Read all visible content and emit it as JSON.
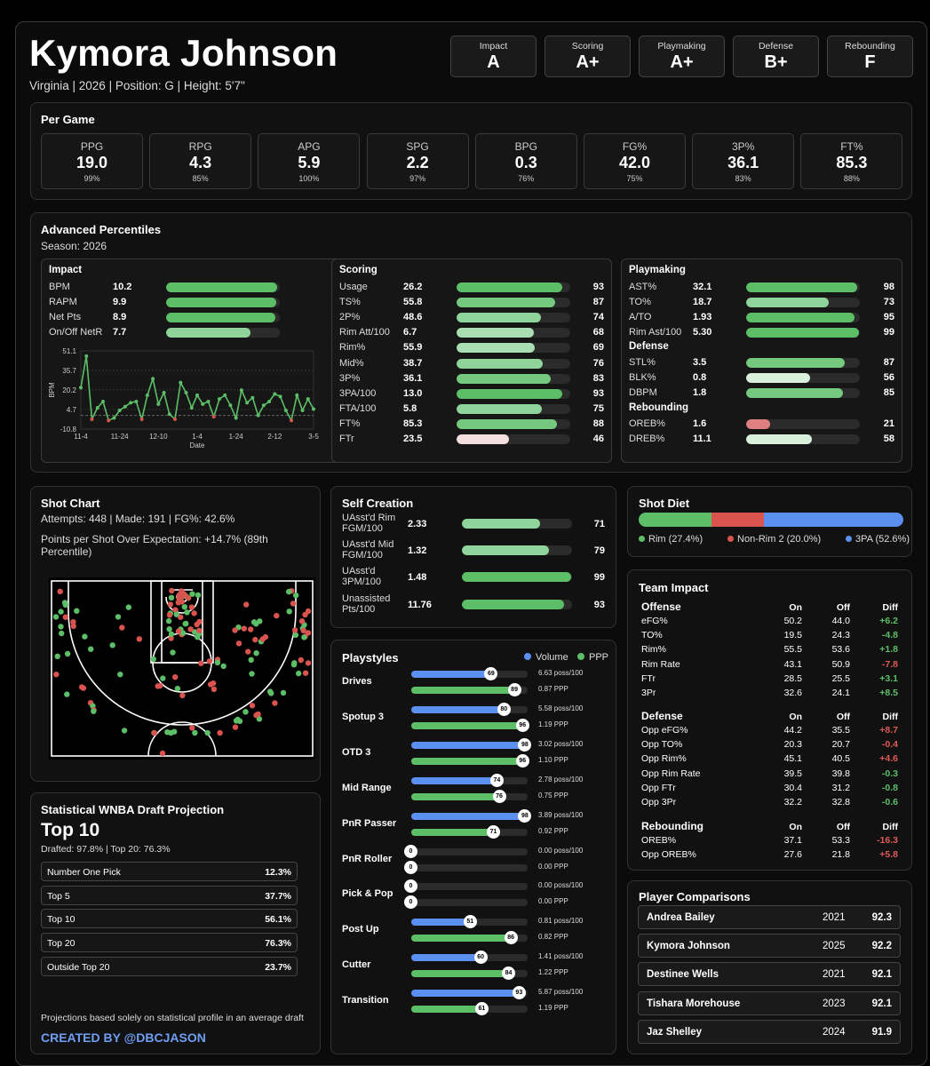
{
  "player": {
    "name": "Kymora Johnson",
    "info": "Virginia | 2026 | Position: G | Height: 5'7\""
  },
  "grades": [
    {
      "label": "Impact",
      "value": "A"
    },
    {
      "label": "Scoring",
      "value": "A+"
    },
    {
      "label": "Playmaking",
      "value": "A+"
    },
    {
      "label": "Defense",
      "value": "B+"
    },
    {
      "label": "Rebounding",
      "value": "F"
    }
  ],
  "per_game": {
    "title": "Per Game",
    "stats": [
      {
        "label": "PPG",
        "value": "19.0",
        "pct": "99%"
      },
      {
        "label": "RPG",
        "value": "4.3",
        "pct": "85%"
      },
      {
        "label": "APG",
        "value": "5.9",
        "pct": "100%"
      },
      {
        "label": "SPG",
        "value": "2.2",
        "pct": "97%"
      },
      {
        "label": "BPG",
        "value": "0.3",
        "pct": "76%"
      },
      {
        "label": "FG%",
        "value": "42.0",
        "pct": "75%"
      },
      {
        "label": "3P%",
        "value": "36.1",
        "pct": "83%"
      },
      {
        "label": "FT%",
        "value": "85.3",
        "pct": "88%"
      }
    ]
  },
  "advanced": {
    "title": "Advanced Percentiles",
    "season": "Season: 2026",
    "impact": {
      "title": "Impact",
      "rows": [
        {
          "label": "BPM",
          "value": "10.2",
          "pct": 98
        },
        {
          "label": "RAPM",
          "value": "9.9",
          "pct": 97
        },
        {
          "label": "Net Pts",
          "value": "8.9",
          "pct": 96
        },
        {
          "label": "On/Off NetR",
          "value": "7.7",
          "pct": 74
        }
      ]
    },
    "scoring": {
      "title": "Scoring",
      "rows": [
        {
          "label": "Usage",
          "value": "26.2",
          "pct": 93
        },
        {
          "label": "TS%",
          "value": "55.8",
          "pct": 87
        },
        {
          "label": "2P%",
          "value": "48.6",
          "pct": 74
        },
        {
          "label": "Rim Att/100",
          "value": "6.7",
          "pct": 68
        },
        {
          "label": "Rim%",
          "value": "55.9",
          "pct": 69
        },
        {
          "label": "Mid%",
          "value": "38.7",
          "pct": 76
        },
        {
          "label": "3P%",
          "value": "36.1",
          "pct": 83
        },
        {
          "label": "3PA/100",
          "value": "13.0",
          "pct": 93
        },
        {
          "label": "FTA/100",
          "value": "5.8",
          "pct": 75
        },
        {
          "label": "FT%",
          "value": "85.3",
          "pct": 88
        },
        {
          "label": "FTr",
          "value": "23.5",
          "pct": 46
        }
      ]
    },
    "playmaking": {
      "title": "Playmaking",
      "rows": [
        {
          "label": "AST%",
          "value": "32.1",
          "pct": 98
        },
        {
          "label": "TO%",
          "value": "18.7",
          "pct": 73
        },
        {
          "label": "A/TO",
          "value": "1.93",
          "pct": 95
        },
        {
          "label": "Rim Ast/100",
          "value": "5.30",
          "pct": 99
        }
      ]
    },
    "defense": {
      "title": "Defense",
      "rows": [
        {
          "label": "STL%",
          "value": "3.5",
          "pct": 87
        },
        {
          "label": "BLK%",
          "value": "0.8",
          "pct": 56
        },
        {
          "label": "DBPM",
          "value": "1.8",
          "pct": 85
        }
      ]
    },
    "rebounding": {
      "title": "Rebounding",
      "rows": [
        {
          "label": "OREB%",
          "value": "1.6",
          "pct": 21
        },
        {
          "label": "DREB%",
          "value": "11.1",
          "pct": 58
        }
      ]
    }
  },
  "chart_data": {
    "type": "line",
    "title": "",
    "xlabel": "Date",
    "ylabel": "BPM",
    "x_ticks": [
      "11-4",
      "11-24",
      "12-10",
      "1-4",
      "1-24",
      "2-12",
      "3-5"
    ],
    "y_ticks": [
      "51.1",
      "35.7",
      "20.2",
      "4.7",
      "-10.8"
    ],
    "ylim": [
      -10.8,
      51.1
    ],
    "values": [
      22,
      47,
      -3,
      6,
      11,
      -4,
      -2,
      4,
      7,
      10,
      11,
      -3,
      16,
      29,
      9,
      18,
      1,
      -3,
      26,
      18,
      6,
      16,
      9,
      11,
      -1,
      13,
      16,
      8,
      -2,
      20,
      10,
      14,
      0,
      8,
      11,
      17,
      15,
      4,
      -4,
      16,
      4,
      13,
      5
    ],
    "neg_points": [
      2,
      5,
      11,
      17,
      24,
      38
    ]
  },
  "shot_chart": {
    "title": "Shot Chart",
    "summary": "Attempts: 448 | Made: 191 | FG%: 42.6%",
    "ppe": "Points per Shot Over Expectation: +14.7% (89th Percentile)"
  },
  "self_creation": {
    "title": "Self Creation",
    "rows": [
      {
        "label": "UAsst'd Rim FGM/100",
        "value": "2.33",
        "pct": 71
      },
      {
        "label": "UAsst'd Mid FGM/100",
        "value": "1.32",
        "pct": 79
      },
      {
        "label": "UAsst'd 3PM/100",
        "value": "1.48",
        "pct": 99
      },
      {
        "label": "Unassisted Pts/100",
        "value": "11.76",
        "pct": 93
      }
    ]
  },
  "shot_diet": {
    "title": "Shot Diet",
    "segments": [
      {
        "label": "Rim (27.4%)",
        "pct": 27.4,
        "color": "#5cbf67"
      },
      {
        "label": "Non-Rim 2 (20.0%)",
        "pct": 20.0,
        "color": "#d9534f"
      },
      {
        "label": "3PA (52.6%)",
        "pct": 52.6,
        "color": "#5b8ff0"
      }
    ]
  },
  "team_impact": {
    "title": "Team Impact",
    "headers": [
      "On",
      "Off",
      "Diff"
    ],
    "groups": [
      {
        "name": "Offense",
        "rows": [
          [
            "eFG%",
            "50.2",
            "44.0",
            "+6.2",
            "g"
          ],
          [
            "TO%",
            "19.5",
            "24.3",
            "-4.8",
            "g"
          ],
          [
            "Rim%",
            "55.5",
            "53.6",
            "+1.8",
            "g"
          ],
          [
            "Rim Rate",
            "43.1",
            "50.9",
            "-7.8",
            "r"
          ],
          [
            "FTr",
            "28.5",
            "25.5",
            "+3.1",
            "g"
          ],
          [
            "3Pr",
            "32.6",
            "24.1",
            "+8.5",
            "g"
          ]
        ]
      },
      {
        "name": "Defense",
        "rows": [
          [
            "Opp eFG%",
            "44.2",
            "35.5",
            "+8.7",
            "r"
          ],
          [
            "Opp TO%",
            "20.3",
            "20.7",
            "-0.4",
            "r"
          ],
          [
            "Opp Rim%",
            "45.1",
            "40.5",
            "+4.6",
            "r"
          ],
          [
            "Opp Rim Rate",
            "39.5",
            "39.8",
            "-0.3",
            "g"
          ],
          [
            "Opp FTr",
            "30.4",
            "31.2",
            "-0.8",
            "g"
          ],
          [
            "Opp 3Pr",
            "32.2",
            "32.8",
            "-0.6",
            "g"
          ]
        ]
      },
      {
        "name": "Rebounding",
        "rows": [
          [
            "OREB%",
            "37.1",
            "53.3",
            "-16.3",
            "r"
          ],
          [
            "Opp OREB%",
            "27.6",
            "21.8",
            "+5.8",
            "r"
          ]
        ]
      }
    ]
  },
  "playstyles": {
    "title": "Playstyles",
    "legend_volume": "Volume",
    "legend_ppp": "PPP",
    "items": [
      {
        "name": "Drives",
        "vol": 69,
        "ppp": 89,
        "vol_text": "6.63 poss/100",
        "ppp_text": "0.87 PPP"
      },
      {
        "name": "Spotup 3",
        "vol": 80,
        "ppp": 96,
        "vol_text": "5.58 poss/100",
        "ppp_text": "1.19 PPP"
      },
      {
        "name": "OTD 3",
        "vol": 98,
        "ppp": 96,
        "vol_text": "3.02 poss/100",
        "ppp_text": "1.10 PPP"
      },
      {
        "name": "Mid Range",
        "vol": 74,
        "ppp": 76,
        "vol_text": "2.78 poss/100",
        "ppp_text": "0.75 PPP"
      },
      {
        "name": "PnR Passer",
        "vol": 98,
        "ppp": 71,
        "vol_text": "3.89 poss/100",
        "ppp_text": "0.92 PPP"
      },
      {
        "name": "PnR Roller",
        "vol": 0,
        "ppp": 0,
        "vol_text": "0.00 poss/100",
        "ppp_text": "0.00 PPP"
      },
      {
        "name": "Pick & Pop",
        "vol": 0,
        "ppp": 0,
        "vol_text": "0.00 poss/100",
        "ppp_text": "0.00 PPP"
      },
      {
        "name": "Post Up",
        "vol": 51,
        "ppp": 86,
        "vol_text": "0.81 poss/100",
        "ppp_text": "0.82 PPP"
      },
      {
        "name": "Cutter",
        "vol": 60,
        "ppp": 84,
        "vol_text": "1.41 poss/100",
        "ppp_text": "1.22 PPP"
      },
      {
        "name": "Transition",
        "vol": 93,
        "ppp": 61,
        "vol_text": "5.87 poss/100",
        "ppp_text": "1.19 PPP"
      }
    ]
  },
  "draft": {
    "title": "Statistical WNBA Draft Projection",
    "headline": "Top 10",
    "sub": "Drafted: 97.8% | Top 20: 76.3%",
    "rows": [
      {
        "label": "Number One Pick",
        "value": "12.3%"
      },
      {
        "label": "Top 5",
        "value": "37.7%"
      },
      {
        "label": "Top 10",
        "value": "56.1%"
      },
      {
        "label": "Top 20",
        "value": "76.3%"
      },
      {
        "label": "Outside Top 20",
        "value": "23.7%"
      }
    ],
    "note": "Projections based solely on statistical profile in an average draft",
    "credit": "CREATED BY @DBCJASON"
  },
  "comparisons": {
    "title": "Player Comparisons",
    "rows": [
      {
        "name": "Andrea Bailey",
        "year": "2021",
        "score": "92.3"
      },
      {
        "name": "Kymora Johnson",
        "year": "2025",
        "score": "92.2"
      },
      {
        "name": "Destinee Wells",
        "year": "2021",
        "score": "92.1"
      },
      {
        "name": "Tishara Morehouse",
        "year": "2023",
        "score": "92.1"
      },
      {
        "name": "Jaz Shelley",
        "year": "2024",
        "score": "91.9"
      }
    ]
  },
  "colors": {
    "green": "#5cbf67",
    "red": "#d9534f",
    "blue": "#5b8ff0"
  }
}
